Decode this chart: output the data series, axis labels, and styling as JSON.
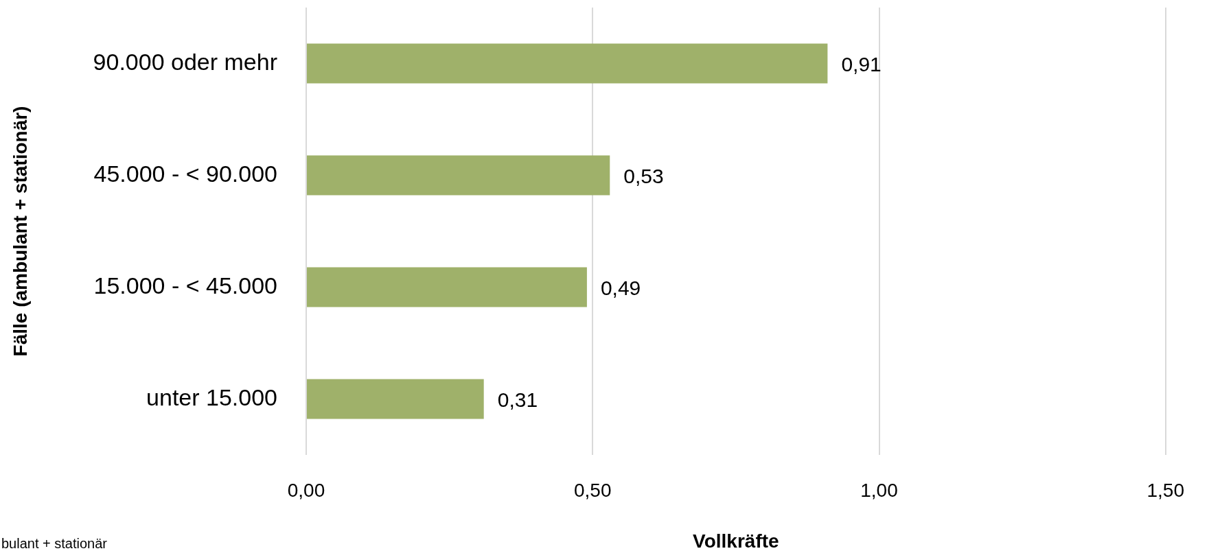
{
  "chart_data": {
    "type": "bar",
    "orientation": "horizontal",
    "xlabel": "Vollkräfte",
    "ylabel": "Fälle (ambulant + stationär)",
    "categories": [
      "90.000 oder mehr",
      "45.000 - < 90.000",
      "15.000 - < 45.000",
      "unter 15.000"
    ],
    "values": [
      0.91,
      0.53,
      0.49,
      0.31
    ],
    "color": "#9fb16a",
    "value_labels": [
      "0,91",
      "0,53",
      "0,49",
      "0,31"
    ],
    "xlim": [
      0,
      1.5
    ],
    "xticks": [
      {
        "value": 0,
        "label": "0,00"
      },
      {
        "value": 0.5,
        "label": "0,50"
      },
      {
        "value": 1,
        "label": "1,00"
      },
      {
        "value": 1.5,
        "label": "1,50"
      }
    ],
    "grid": "x",
    "annotations": [
      "bulant + stationär"
    ]
  }
}
